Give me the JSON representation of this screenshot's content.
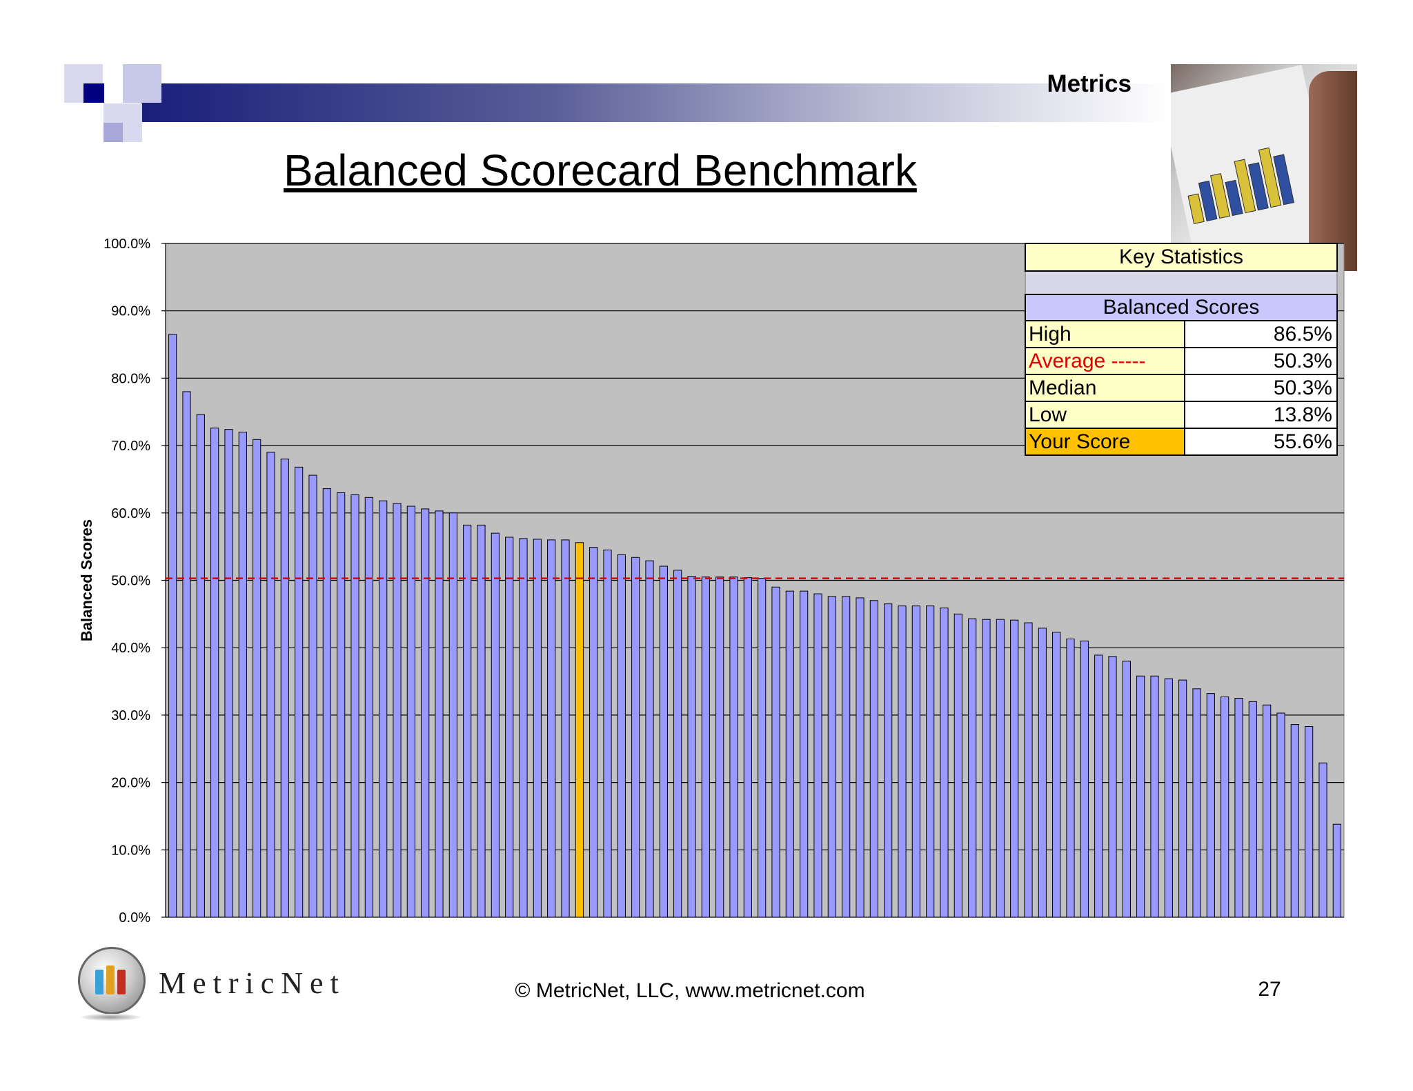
{
  "header": {
    "section_label": "Metrics",
    "title": "Balanced Scorecard Benchmark"
  },
  "footer": {
    "copyright": "© MetricNet, LLC, www.metricnet.com",
    "page_number": "27",
    "logo_text": "MetricNet"
  },
  "stats": {
    "title": "Key Statistics",
    "table_header": "Balanced Scores",
    "rows": [
      {
        "label": "High",
        "value": "86.5%",
        "label_color": "#000000",
        "label_bg": "#ffffc8"
      },
      {
        "label": "Average -----",
        "value": "50.3%",
        "label_color": "#e00000",
        "label_bg": "#ffffc8"
      },
      {
        "label": "Median",
        "value": "50.3%",
        "label_color": "#000000",
        "label_bg": "#ffffc8"
      },
      {
        "label": "Low",
        "value": "13.8%",
        "label_color": "#000000",
        "label_bg": "#ffffc8"
      },
      {
        "label": "Your Score",
        "value": "55.6%",
        "label_color": "#000000",
        "label_bg": "#ffc000"
      }
    ]
  },
  "chart_data": {
    "type": "bar",
    "ylabel": "Balanced Scores",
    "xlabel": "",
    "ylim": [
      0,
      100
    ],
    "yticks": [
      "0.0%",
      "10.0%",
      "20.0%",
      "30.0%",
      "40.0%",
      "50.0%",
      "60.0%",
      "70.0%",
      "80.0%",
      "90.0%",
      "100.0%"
    ],
    "grid": true,
    "plot_background": "#c0c0c0",
    "bar_color": "#9999ff",
    "highlight_color": "#ffc000",
    "highlight_index": 29,
    "average_line": {
      "value": 50.3,
      "color": "#e00000",
      "style": "dashed"
    },
    "values": [
      86.5,
      78.0,
      74.6,
      72.6,
      72.4,
      72.0,
      70.9,
      69.0,
      68.0,
      66.8,
      65.6,
      63.6,
      63.0,
      62.7,
      62.3,
      61.8,
      61.4,
      61.0,
      60.6,
      60.3,
      60.0,
      58.2,
      58.2,
      57.0,
      56.4,
      56.2,
      56.1,
      56.0,
      56.0,
      55.6,
      54.9,
      54.5,
      53.8,
      53.4,
      52.9,
      52.1,
      51.5,
      50.6,
      50.5,
      50.5,
      50.5,
      50.4,
      50.3,
      49.0,
      48.4,
      48.4,
      48.0,
      47.6,
      47.6,
      47.4,
      47.0,
      46.5,
      46.2,
      46.2,
      46.2,
      45.9,
      45.0,
      44.3,
      44.2,
      44.2,
      44.1,
      43.7,
      42.9,
      42.3,
      41.3,
      41.0,
      38.9,
      38.7,
      38.0,
      35.8,
      35.8,
      35.4,
      35.2,
      33.9,
      33.2,
      32.7,
      32.5,
      32.0,
      31.5,
      30.3,
      28.6,
      28.3,
      22.9,
      13.8
    ]
  }
}
